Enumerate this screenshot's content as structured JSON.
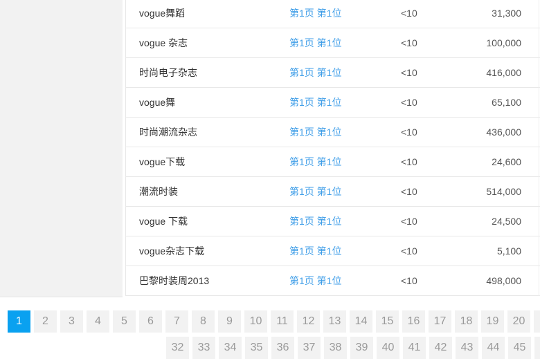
{
  "table": {
    "rank_label": "第1页 第1位",
    "rows": [
      {
        "keyword": "vogue舞蹈",
        "rank": "第1页 第1位",
        "index": "<10",
        "volume": "31,300"
      },
      {
        "keyword": "vogue 杂志",
        "rank": "第1页 第1位",
        "index": "<10",
        "volume": "100,000"
      },
      {
        "keyword": "时尚电子杂志",
        "rank": "第1页 第1位",
        "index": "<10",
        "volume": "416,000"
      },
      {
        "keyword": "vogue舞",
        "rank": "第1页 第1位",
        "index": "<10",
        "volume": "65,100"
      },
      {
        "keyword": "时尚潮流杂志",
        "rank": "第1页 第1位",
        "index": "<10",
        "volume": "436,000"
      },
      {
        "keyword": "vogue下载",
        "rank": "第1页 第1位",
        "index": "<10",
        "volume": "24,600"
      },
      {
        "keyword": "潮流时装",
        "rank": "第1页 第1位",
        "index": "<10",
        "volume": "514,000"
      },
      {
        "keyword": "vogue 下载",
        "rank": "第1页 第1位",
        "index": "<10",
        "volume": "24,500"
      },
      {
        "keyword": "vogue杂志下载",
        "rank": "第1页 第1位",
        "index": "<10",
        "volume": "5,100"
      },
      {
        "keyword": "巴黎时装周2013",
        "rank": "第1页 第1位",
        "index": "<10",
        "volume": "498,000"
      }
    ]
  },
  "pagination": {
    "active_page": "1",
    "rows": [
      {
        "pages": [
          "1",
          "2",
          "3",
          "4",
          "5",
          "6",
          "7",
          "8",
          "9",
          "10",
          "11",
          "12",
          "13",
          "14",
          "15",
          "16",
          "17",
          "18",
          "19",
          "20"
        ],
        "next_clipped": true
      },
      {
        "pages": [
          "32",
          "33",
          "34",
          "35",
          "36",
          "37",
          "38",
          "39",
          "40",
          "41",
          "42",
          "43",
          "44",
          "45"
        ],
        "next_clipped": true
      }
    ]
  },
  "colors": {
    "accent_blue": "#0aa1f0",
    "link_blue": "#3f9ee8",
    "panel_gray": "#f2f2f2"
  }
}
